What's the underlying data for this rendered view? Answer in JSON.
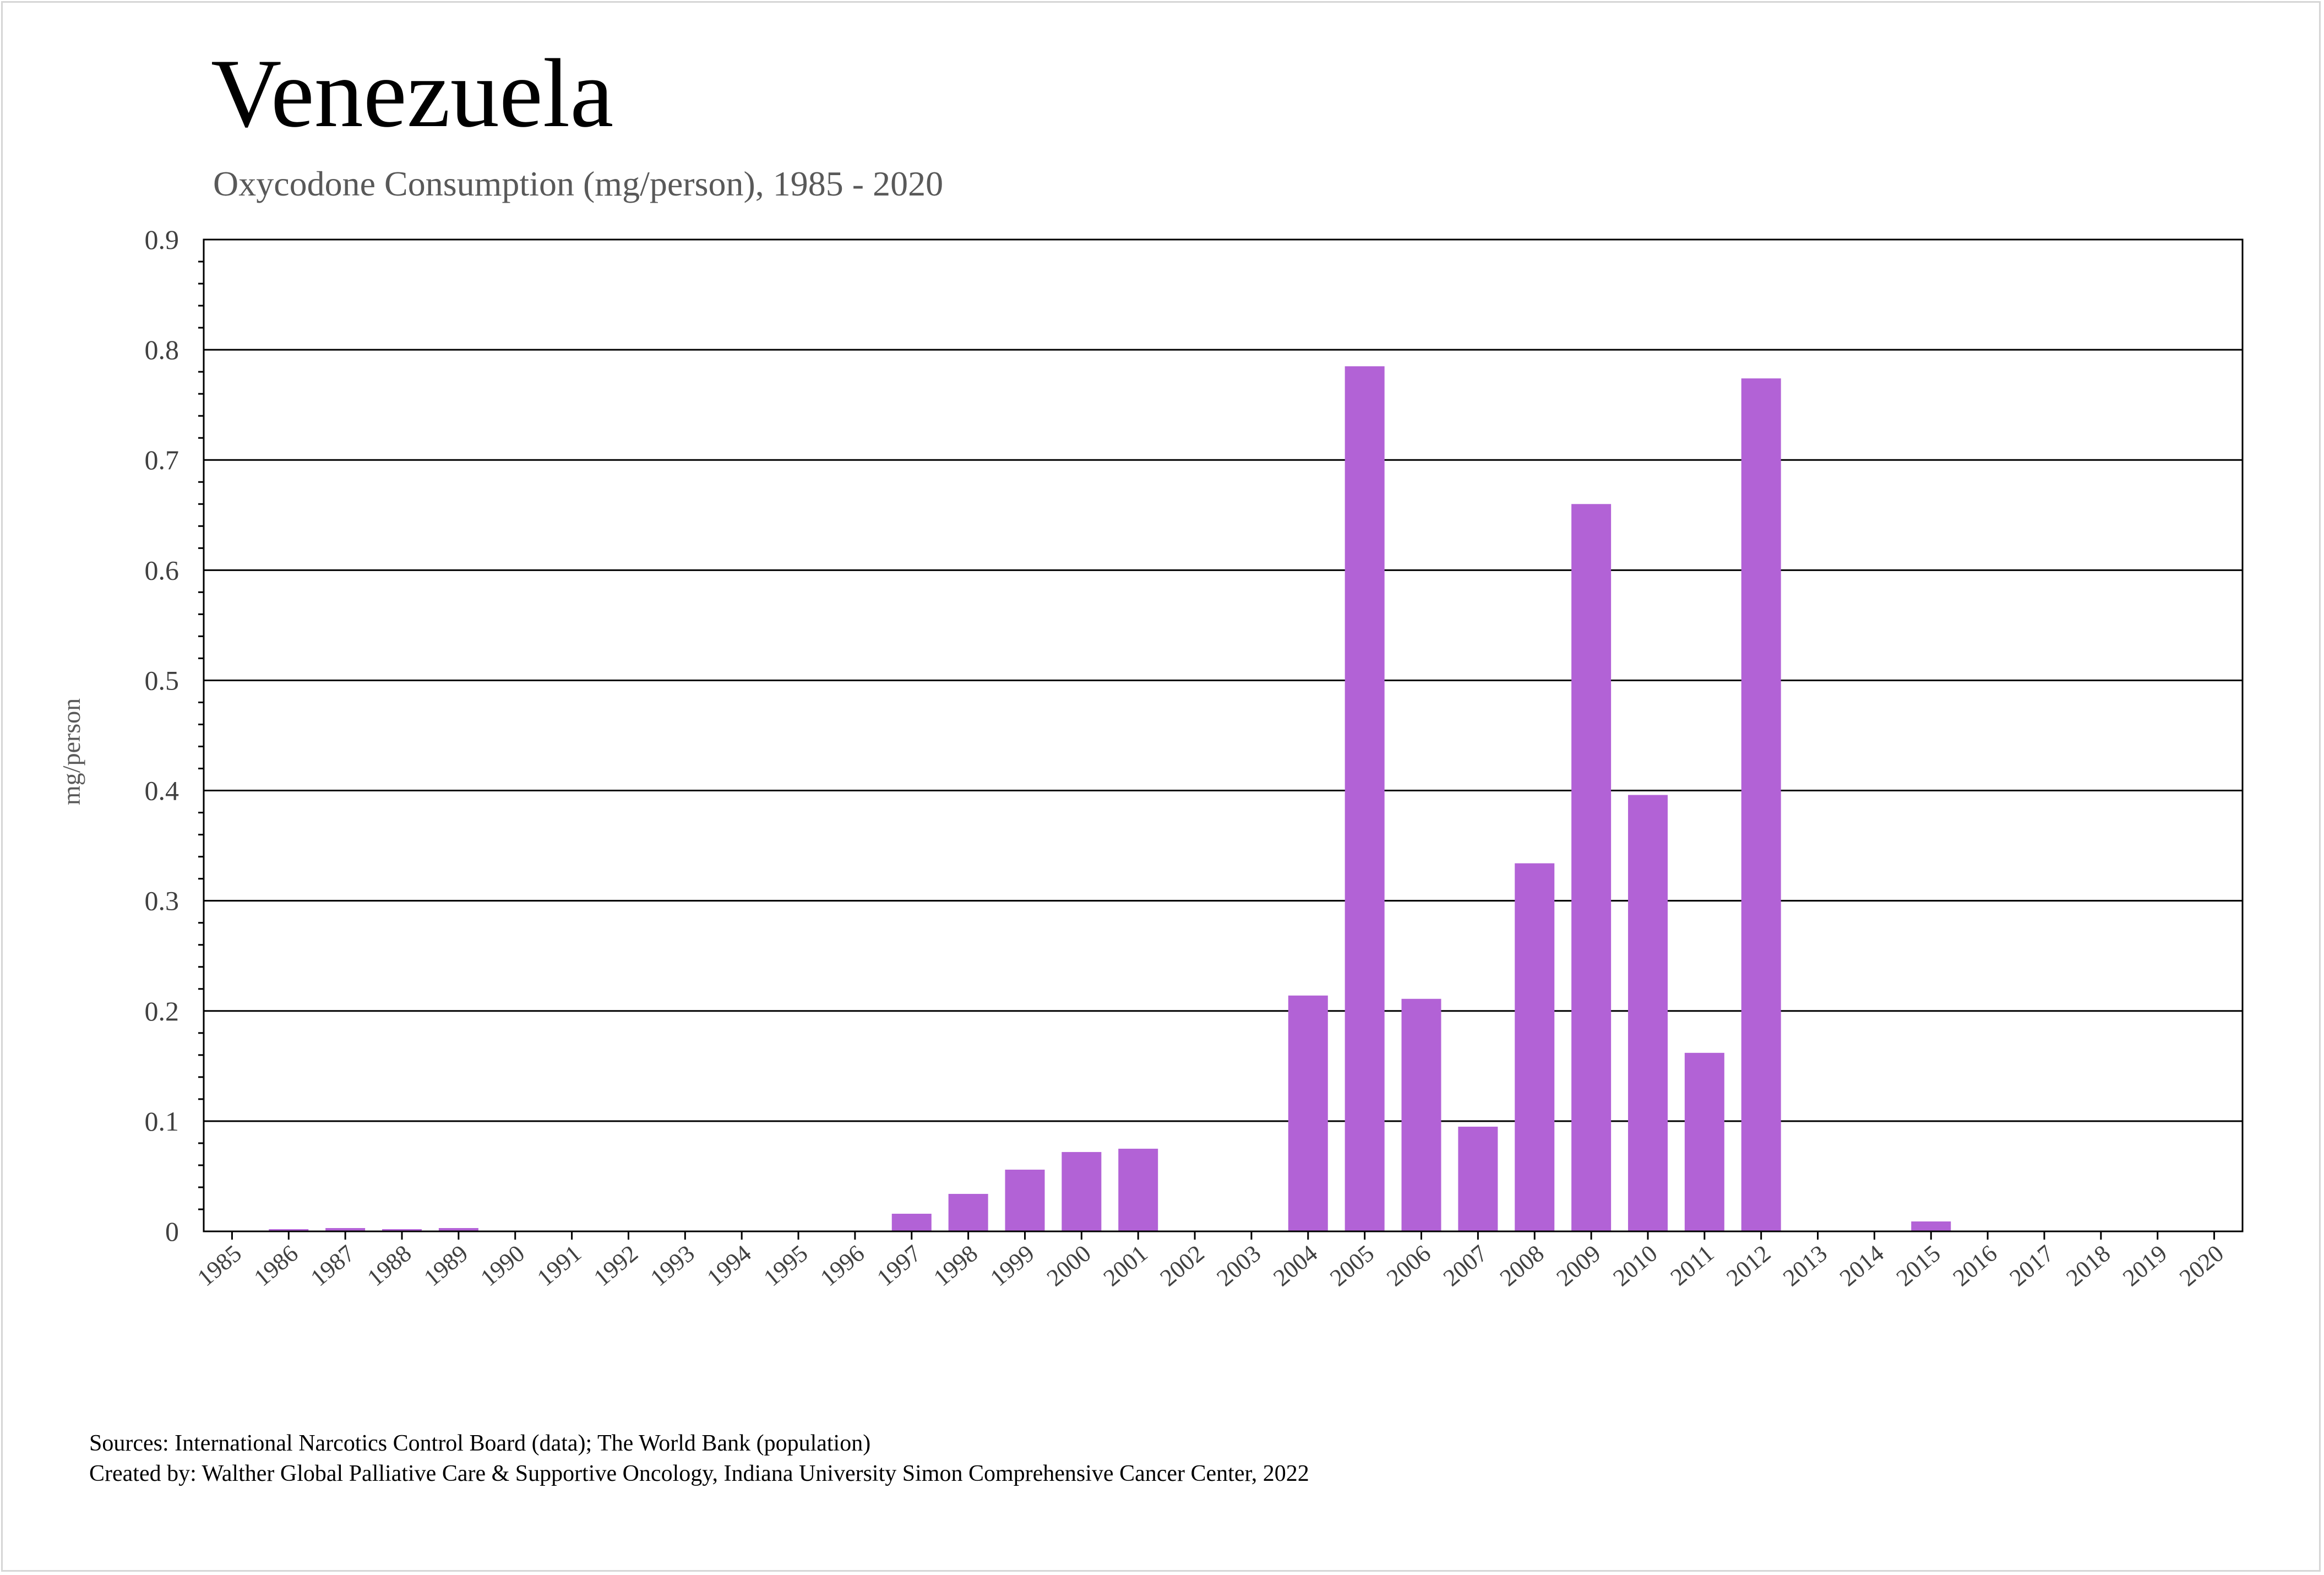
{
  "chart_data": {
    "type": "bar",
    "title": "Venezuela",
    "subtitle": "Oxycodone Consumption (mg/person), 1985 - 2020",
    "xlabel": "",
    "ylabel": "mg/person",
    "ylim": [
      0,
      0.9
    ],
    "yticks": [
      "0",
      "0.1",
      "0.2",
      "0.3",
      "0.4",
      "0.5",
      "0.6",
      "0.7",
      "0.8",
      "0.9"
    ],
    "grid": true,
    "bar_color": "#b262d6",
    "categories": [
      "1985",
      "1986",
      "1987",
      "1988",
      "1989",
      "1990",
      "1991",
      "1992",
      "1993",
      "1994",
      "1995",
      "1996",
      "1997",
      "1998",
      "1999",
      "2000",
      "2001",
      "2002",
      "2003",
      "2004",
      "2005",
      "2006",
      "2007",
      "2008",
      "2009",
      "2010",
      "2011",
      "2012",
      "2013",
      "2014",
      "2015",
      "2016",
      "2017",
      "2018",
      "2019",
      "2020"
    ],
    "values": [
      0,
      0.002,
      0.003,
      0.002,
      0.003,
      0,
      0,
      0,
      0,
      0,
      0,
      0,
      0.016,
      0.034,
      0.056,
      0.072,
      0.075,
      0,
      0,
      0.214,
      0.785,
      0.211,
      0.095,
      0.334,
      0.66,
      0.396,
      0.162,
      0.774,
      0,
      0,
      0.009,
      0,
      0,
      0,
      0,
      0
    ]
  },
  "footer": {
    "sources": "Sources: International Narcotics Control Board (data); The World Bank (population)",
    "created_by": "Created by: Walther Global Palliative Care & Supportive Oncology, Indiana University Simon Comprehensive Cancer Center, 2022"
  }
}
